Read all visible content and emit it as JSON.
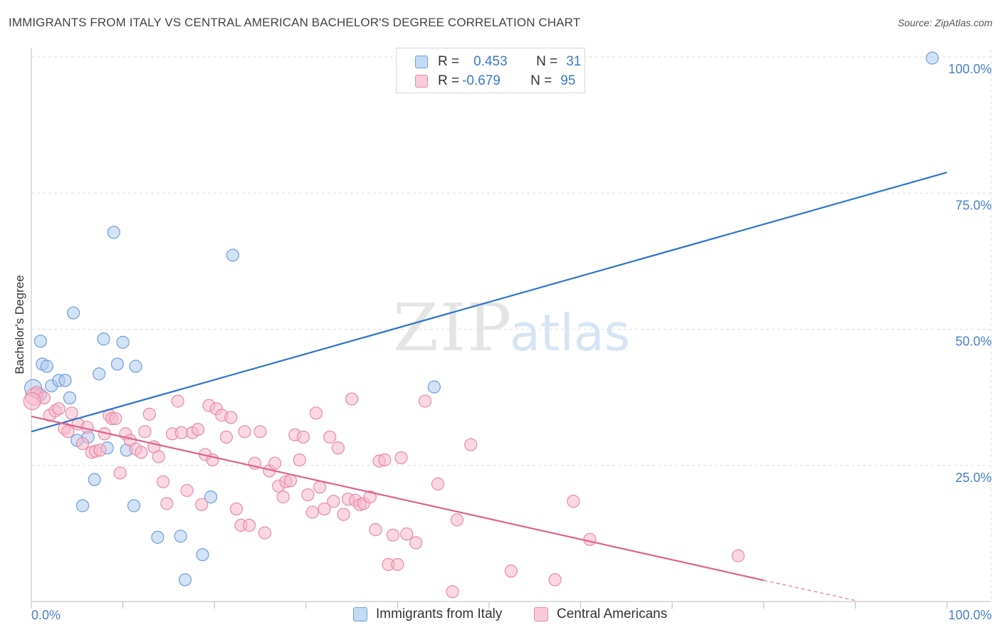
{
  "title": "IMMIGRANTS FROM ITALY VS CENTRAL AMERICAN BACHELOR'S DEGREE CORRELATION CHART",
  "source": "Source: ZipAtlas.com",
  "watermark": {
    "zip": "ZIP",
    "atlas": "atlas"
  },
  "colors": {
    "blue_fill": "#aecbf0",
    "blue_stroke": "#6f9fd8",
    "blue_line": "#2f73cc",
    "pink_fill": "#f5b8cb",
    "pink_stroke": "#e88aa8",
    "pink_line": "#e0608e",
    "tick_label": "#4a7fc8",
    "grid": "#dddddd"
  },
  "legend": {
    "rows": [
      {
        "r_label": "R =",
        "r_value": "0.453",
        "n_label": "N =",
        "n_value": "31",
        "color": "blue"
      },
      {
        "r_label": "R =",
        "r_value": "-0.679",
        "n_label": "N =",
        "n_value": "95",
        "color": "pink"
      }
    ]
  },
  "chart_data": {
    "type": "scatter",
    "xlabel": "",
    "ylabel": "Bachelor's Degree",
    "xlim": [
      0,
      100
    ],
    "ylim": [
      0,
      100
    ],
    "x_tick_labels": [
      "0.0%",
      "100.0%"
    ],
    "y_tick_labels": [
      "25.0%",
      "50.0%",
      "75.0%",
      "100.0%"
    ],
    "y_ticks": [
      25,
      50,
      75,
      100
    ],
    "grid": true,
    "legend_position": "top-center",
    "series": [
      {
        "name": "Immigrants from Italy",
        "color": "blue",
        "trend": {
          "x": [
            0,
            100
          ],
          "y": [
            31.2,
            78.8
          ]
        },
        "points": [
          [
            0.2,
            39.2
          ],
          [
            1.0,
            47.8
          ],
          [
            1.2,
            43.6
          ],
          [
            1.7,
            43.2
          ],
          [
            2.2,
            39.6
          ],
          [
            3.0,
            40.6
          ],
          [
            3.7,
            40.6
          ],
          [
            4.2,
            37.4
          ],
          [
            4.6,
            53.0
          ],
          [
            5.0,
            29.6
          ],
          [
            5.6,
            17.6
          ],
          [
            6.2,
            30.2
          ],
          [
            6.9,
            22.4
          ],
          [
            7.4,
            41.8
          ],
          [
            7.9,
            48.2
          ],
          [
            8.3,
            28.2
          ],
          [
            9.0,
            67.8
          ],
          [
            9.4,
            43.6
          ],
          [
            10.0,
            47.6
          ],
          [
            10.4,
            27.8
          ],
          [
            11.2,
            17.6
          ],
          [
            11.4,
            43.2
          ],
          [
            13.8,
            11.8
          ],
          [
            16.3,
            12.0
          ],
          [
            16.8,
            4.0
          ],
          [
            18.7,
            8.6
          ],
          [
            19.6,
            19.2
          ],
          [
            22.0,
            63.6
          ],
          [
            44.0,
            39.4
          ],
          [
            98.4,
            99.8
          ],
          [
            1.0,
            38.0
          ]
        ]
      },
      {
        "name": "Central Americans",
        "color": "pink",
        "trend": {
          "x": [
            0,
            80
          ],
          "y": [
            34.0,
            3.9
          ]
        },
        "trend_dashed": {
          "x": [
            80,
            90
          ],
          "y": [
            3.9,
            0.2
          ]
        },
        "points": [
          [
            0.3,
            37.6
          ],
          [
            0.6,
            38.4
          ],
          [
            1.4,
            37.4
          ],
          [
            2.0,
            34.2
          ],
          [
            2.6,
            35.0
          ],
          [
            3.0,
            35.4
          ],
          [
            3.6,
            31.8
          ],
          [
            4.0,
            31.2
          ],
          [
            4.4,
            34.6
          ],
          [
            5.1,
            32.6
          ],
          [
            5.6,
            29.0
          ],
          [
            6.1,
            32.0
          ],
          [
            6.6,
            27.4
          ],
          [
            7.0,
            27.6
          ],
          [
            7.5,
            27.8
          ],
          [
            8.0,
            30.8
          ],
          [
            8.5,
            34.2
          ],
          [
            8.8,
            33.6
          ],
          [
            9.2,
            33.6
          ],
          [
            9.7,
            23.6
          ],
          [
            10.3,
            30.8
          ],
          [
            10.8,
            29.6
          ],
          [
            11.4,
            28.0
          ],
          [
            12.0,
            27.4
          ],
          [
            12.4,
            31.2
          ],
          [
            12.9,
            34.4
          ],
          [
            13.4,
            28.4
          ],
          [
            13.9,
            26.6
          ],
          [
            14.4,
            22.0
          ],
          [
            14.8,
            18.0
          ],
          [
            15.4,
            30.8
          ],
          [
            16.0,
            36.8
          ],
          [
            16.4,
            31.0
          ],
          [
            17.0,
            20.4
          ],
          [
            17.6,
            31.0
          ],
          [
            18.2,
            31.6
          ],
          [
            18.6,
            17.8
          ],
          [
            19.0,
            27.0
          ],
          [
            19.4,
            36.0
          ],
          [
            19.8,
            26.0
          ],
          [
            20.2,
            35.4
          ],
          [
            20.8,
            34.2
          ],
          [
            21.3,
            30.2
          ],
          [
            21.8,
            33.8
          ],
          [
            22.4,
            17.0
          ],
          [
            22.9,
            14.0
          ],
          [
            23.3,
            31.2
          ],
          [
            23.8,
            14.0
          ],
          [
            24.4,
            25.4
          ],
          [
            25.0,
            31.2
          ],
          [
            25.5,
            12.6
          ],
          [
            26.0,
            24.0
          ],
          [
            26.6,
            25.4
          ],
          [
            27.0,
            21.2
          ],
          [
            27.5,
            19.2
          ],
          [
            27.8,
            22.0
          ],
          [
            28.3,
            22.2
          ],
          [
            28.8,
            30.6
          ],
          [
            29.3,
            26.0
          ],
          [
            29.7,
            30.2
          ],
          [
            30.2,
            19.6
          ],
          [
            30.7,
            16.4
          ],
          [
            31.1,
            34.6
          ],
          [
            31.5,
            21.0
          ],
          [
            32.0,
            17.0
          ],
          [
            32.6,
            30.2
          ],
          [
            33.0,
            18.4
          ],
          [
            33.5,
            28.2
          ],
          [
            34.1,
            16.0
          ],
          [
            34.6,
            18.8
          ],
          [
            35.0,
            37.2
          ],
          [
            35.4,
            18.6
          ],
          [
            35.9,
            17.8
          ],
          [
            36.3,
            18.0
          ],
          [
            37.0,
            19.2
          ],
          [
            37.6,
            13.2
          ],
          [
            38.0,
            25.8
          ],
          [
            38.6,
            26.0
          ],
          [
            39.0,
            6.8
          ],
          [
            39.5,
            12.2
          ],
          [
            40.0,
            6.8
          ],
          [
            40.4,
            26.4
          ],
          [
            41.0,
            12.4
          ],
          [
            42.0,
            10.8
          ],
          [
            43.0,
            36.8
          ],
          [
            44.4,
            21.6
          ],
          [
            46.0,
            1.8
          ],
          [
            46.5,
            15.0
          ],
          [
            48.0,
            28.8
          ],
          [
            52.4,
            5.6
          ],
          [
            57.2,
            4.0
          ],
          [
            59.2,
            18.4
          ],
          [
            61.0,
            11.4
          ],
          [
            77.2,
            8.4
          ],
          [
            0.1,
            36.8
          ]
        ]
      }
    ]
  },
  "bottom_legend": [
    {
      "label": "Immigrants from Italy",
      "color": "blue"
    },
    {
      "label": "Central Americans",
      "color": "pink"
    }
  ]
}
